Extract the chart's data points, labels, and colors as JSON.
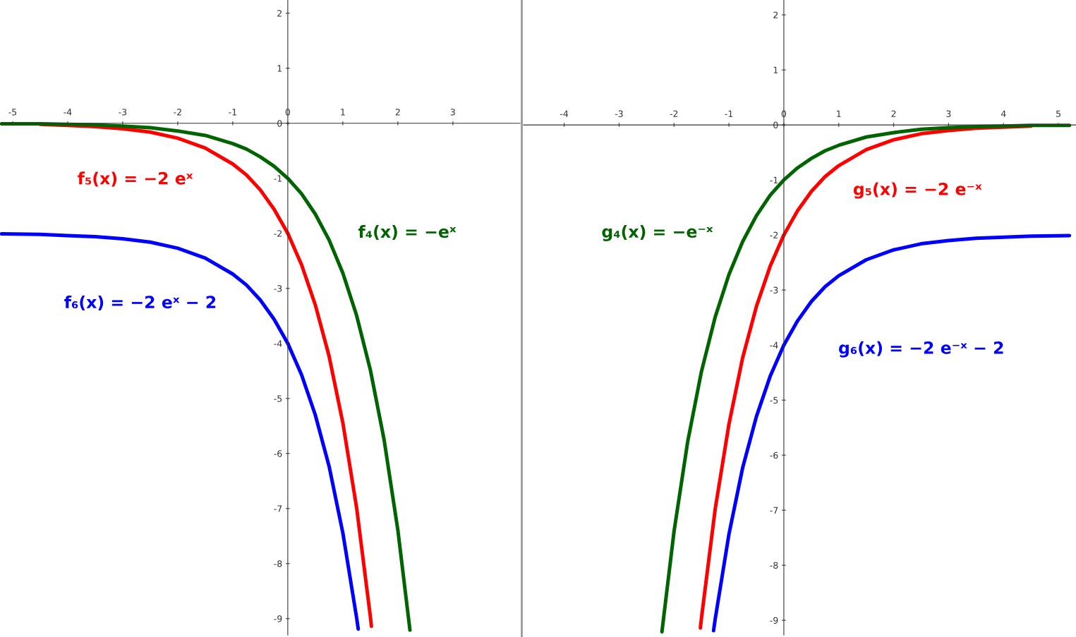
{
  "chart_data": [
    {
      "type": "line",
      "xlim": [
        -5.23,
        4.22
      ],
      "ylim": [
        -9.3,
        2.24
      ],
      "xticks": [
        -5,
        -4,
        -3,
        -2,
        -1,
        0,
        1,
        2,
        3
      ],
      "yticks": [
        -9,
        -8,
        -7,
        -6,
        -5,
        -4,
        -3,
        -2,
        -1,
        0,
        1,
        2
      ],
      "legend": false,
      "series": [
        {
          "name": "f₅(x) = −2 eˣ",
          "color": "#ff0000",
          "x": [
            -4.5,
            -4,
            -3.5,
            -3,
            -2.5,
            -2,
            -1.5,
            -1,
            -0.75,
            -0.5,
            -0.25,
            0,
            0.25,
            0.5,
            0.75,
            1,
            1.25,
            1.5,
            1.52
          ],
          "values": [
            -0.02,
            -0.04,
            -0.06,
            -0.1,
            -0.16,
            -0.27,
            -0.45,
            -0.74,
            -0.94,
            -1.21,
            -1.56,
            -2,
            -2.57,
            -3.3,
            -4.23,
            -5.44,
            -6.98,
            -8.96,
            -9.14
          ]
        },
        {
          "name": "f₄(x) = −eˣ",
          "color": "#006400",
          "x": [
            -5.2,
            -4.5,
            -4,
            -3.5,
            -3,
            -2.5,
            -2,
            -1.5,
            -1,
            -0.75,
            -0.5,
            -0.25,
            0,
            0.25,
            0.5,
            0.75,
            1,
            1.25,
            1.5,
            1.75,
            2,
            2.22
          ],
          "values": [
            -0.01,
            -0.01,
            -0.02,
            -0.03,
            -0.05,
            -0.08,
            -0.14,
            -0.22,
            -0.37,
            -0.47,
            -0.61,
            -0.78,
            -1,
            -1.28,
            -1.65,
            -2.12,
            -2.72,
            -3.49,
            -4.48,
            -5.75,
            -7.39,
            -9.21
          ]
        },
        {
          "name": "f₆(x) = −2 eˣ − 2",
          "color": "#0000ff",
          "x": [
            -5.2,
            -4.5,
            -4,
            -3.5,
            -3,
            -2.5,
            -2,
            -1.5,
            -1,
            -0.75,
            -0.5,
            -0.25,
            0,
            0.25,
            0.5,
            0.75,
            1,
            1.25,
            1.28
          ],
          "values": [
            -2.01,
            -2.02,
            -2.04,
            -2.06,
            -2.1,
            -2.16,
            -2.27,
            -2.45,
            -2.74,
            -2.94,
            -3.21,
            -3.56,
            -4,
            -4.57,
            -5.3,
            -6.23,
            -7.44,
            -8.98,
            -9.19
          ]
        }
      ]
    },
    {
      "type": "line",
      "xlim": [
        -4.74,
        5.32
      ],
      "ylim": [
        -9.27,
        2.27
      ],
      "xticks": [
        -4,
        -3,
        -2,
        -1,
        0,
        1,
        2,
        3,
        4,
        5
      ],
      "yticks": [
        -9,
        -8,
        -7,
        -6,
        -5,
        -4,
        -3,
        -2,
        -1,
        0,
        1,
        2
      ],
      "legend": false,
      "series": [
        {
          "name": "g₅(x) = −2 e⁻ˣ",
          "color": "#ff0000",
          "x": [
            -1.52,
            -1.5,
            -1.25,
            -1,
            -0.75,
            -0.5,
            -0.25,
            0,
            0.25,
            0.5,
            0.75,
            1,
            1.5,
            2,
            2.5,
            3,
            3.5,
            4,
            4.5
          ],
          "values": [
            -9.14,
            -8.96,
            -6.98,
            -5.44,
            -4.23,
            -3.3,
            -2.57,
            -2,
            -1.56,
            -1.21,
            -0.94,
            -0.74,
            -0.45,
            -0.27,
            -0.16,
            -0.1,
            -0.06,
            -0.04,
            -0.02
          ]
        },
        {
          "name": "g₄(x) = −e⁻ˣ",
          "color": "#006400",
          "x": [
            -2.22,
            -2,
            -1.75,
            -1.5,
            -1.25,
            -1,
            -0.75,
            -0.5,
            -0.25,
            0,
            0.25,
            0.5,
            0.75,
            1,
            1.5,
            2,
            2.5,
            3,
            3.5,
            4,
            4.5,
            5.2
          ],
          "values": [
            -9.21,
            -7.39,
            -5.75,
            -4.48,
            -3.49,
            -2.72,
            -2.12,
            -1.65,
            -1.28,
            -1,
            -0.78,
            -0.61,
            -0.47,
            -0.37,
            -0.22,
            -0.14,
            -0.08,
            -0.05,
            -0.03,
            -0.02,
            -0.01,
            -0.01
          ]
        },
        {
          "name": "g₆(x) = −2 e⁻ˣ − 2",
          "color": "#0000ff",
          "x": [
            -1.28,
            -1.25,
            -1,
            -0.75,
            -0.5,
            -0.25,
            0,
            0.25,
            0.5,
            0.75,
            1,
            1.5,
            2,
            2.5,
            3,
            3.5,
            4,
            4.5,
            5.2
          ],
          "values": [
            -9.19,
            -8.98,
            -7.44,
            -6.23,
            -5.3,
            -4.57,
            -4,
            -3.56,
            -3.21,
            -2.94,
            -2.74,
            -2.45,
            -2.27,
            -2.16,
            -2.1,
            -2.06,
            -2.04,
            -2.02,
            -2.01
          ]
        }
      ]
    }
  ]
}
